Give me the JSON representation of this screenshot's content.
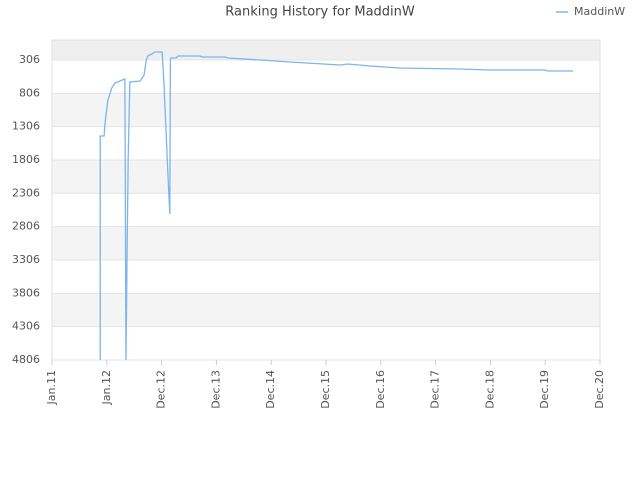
{
  "chart_data": {
    "type": "line",
    "title": "Ranking History for MaddinW",
    "ylim": [
      4806,
      6
    ],
    "yticks": [
      306,
      806,
      1306,
      1806,
      2306,
      2806,
      3306,
      3806,
      4306,
      4806
    ],
    "xlim": [
      0,
      10
    ],
    "xticks": [
      {
        "value": 0,
        "label": "Jan.11"
      },
      {
        "value": 1,
        "label": "Jan.12"
      },
      {
        "value": 2,
        "label": "Dec.12"
      },
      {
        "value": 3,
        "label": "Dec.13"
      },
      {
        "value": 4,
        "label": "Dec.14"
      },
      {
        "value": 5,
        "label": "Dec.15"
      },
      {
        "value": 6,
        "label": "Dec.16"
      },
      {
        "value": 7,
        "label": "Dec.17"
      },
      {
        "value": 8,
        "label": "Dec.18"
      },
      {
        "value": 9,
        "label": "Dec.19"
      },
      {
        "value": 10,
        "label": "Dec.20"
      }
    ],
    "grid": true,
    "legend": "top-right",
    "series": [
      {
        "name": "MaddinW",
        "color": "#7cb5ec",
        "x": [
          0.88,
          0.88,
          0.95,
          0.97,
          1.02,
          1.09,
          1.15,
          1.24,
          1.33,
          1.35,
          1.37,
          1.39,
          1.42,
          1.61,
          1.68,
          1.72,
          1.75,
          1.82,
          1.88,
          2.01,
          2.04,
          2.08,
          2.12,
          2.15,
          2.16,
          2.17,
          2.26,
          2.3,
          2.7,
          2.74,
          3.16,
          3.21,
          3.8,
          4.34,
          5.26,
          5.4,
          5.8,
          6.35,
          7.45,
          7.99,
          9.0,
          9.05,
          9.51
        ],
        "values": [
          4806,
          1446,
          1446,
          1236,
          906,
          726,
          651,
          621,
          591,
          4806,
          3200,
          1800,
          636,
          621,
          531,
          306,
          246,
          216,
          186,
          186,
          606,
          1356,
          2106,
          2616,
          306,
          276,
          276,
          246,
          246,
          261,
          261,
          276,
          306,
          336,
          381,
          366,
          396,
          426,
          441,
          456,
          456,
          471,
          471
        ]
      }
    ]
  }
}
